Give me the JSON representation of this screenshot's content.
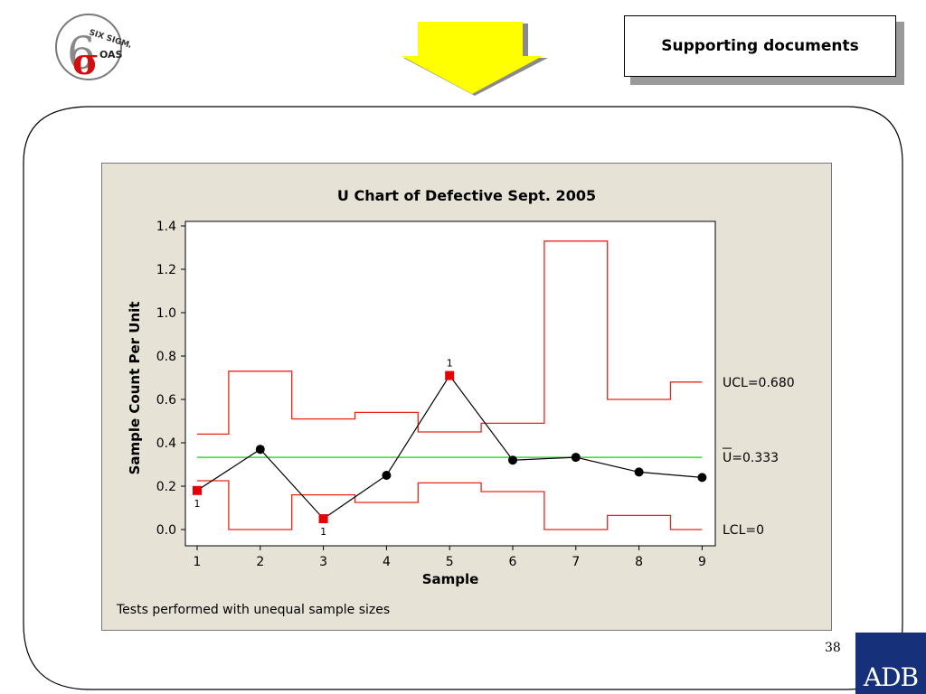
{
  "logo": {
    "top_text": "SIX SIGMA",
    "bottom_text": "OAS",
    "symbol": "σ",
    "numeral": "6"
  },
  "header": {
    "title": "Supporting documents"
  },
  "arrow": {
    "icon": "down-arrow-icon",
    "color": "#ffff00"
  },
  "page_number": "38",
  "adb_logo": "ADB",
  "footnote": "Tests performed with unequal sample sizes",
  "colors": {
    "limits": "#e8251b",
    "center": "#3cd43c",
    "points": "#000000",
    "flagged": "#e60000",
    "panel": "#e6e2d6"
  },
  "chart_data": {
    "type": "line",
    "title": "U Chart of Defective Sept. 2005",
    "xlabel": "Sample",
    "ylabel": "Sample Count Per Unit",
    "x": [
      1,
      2,
      3,
      4,
      5,
      6,
      7,
      8,
      9
    ],
    "ylim": [
      0,
      1.4
    ],
    "yticks": [
      "0.0",
      "0.2",
      "0.4",
      "0.6",
      "0.8",
      "1.0",
      "1.2",
      "1.4"
    ],
    "xticks": [
      "1",
      "2",
      "3",
      "4",
      "5",
      "6",
      "7",
      "8",
      "9"
    ],
    "series": [
      {
        "values": [
          0.18,
          0.37,
          0.05,
          0.25,
          0.71,
          0.32,
          0.333,
          0.265,
          0.24
        ]
      }
    ],
    "flagged_points": [
      {
        "x": 1,
        "label": "1"
      },
      {
        "x": 3,
        "label": "1"
      },
      {
        "x": 5,
        "label": "1"
      }
    ],
    "ucl": [
      0.44,
      0.73,
      0.51,
      0.54,
      0.45,
      0.49,
      1.33,
      0.6,
      0.68
    ],
    "lcl": [
      0.225,
      0.0,
      0.16,
      0.125,
      0.215,
      0.175,
      0.0,
      0.065,
      0.0
    ],
    "center": 0.333,
    "limit_labels": {
      "ucl": "UCL=0.680",
      "center": "U=0.333",
      "lcl": "LCL=0"
    },
    "grid": false
  }
}
